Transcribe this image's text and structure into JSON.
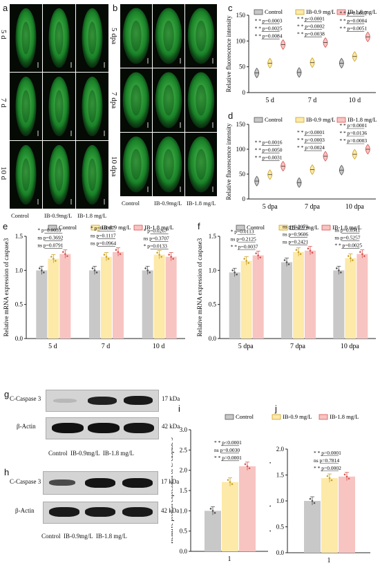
{
  "panels": {
    "a": {
      "letter": "a",
      "rows": [
        "5 d",
        "7 d",
        "10 d"
      ],
      "cols": [
        "Control",
        "IB-0.9mg/L",
        "IB-1.8 mg/L"
      ]
    },
    "b": {
      "letter": "b",
      "rows": [
        "5 dpa",
        "7 dpa",
        "10 dpa"
      ],
      "cols": [
        "Control",
        "IB-0.9mg/L",
        "IB-1.8 mg/L"
      ]
    },
    "g": {
      "letter": "g",
      "bands": [
        {
          "name": "C-Caspase 3",
          "kda": "17 kDa"
        },
        {
          "name": "β-Actin",
          "kda": "42 kDa"
        }
      ],
      "cols": "Control  IB-0.9mg/L  IB-1.8 mg/L"
    },
    "h": {
      "letter": "h",
      "bands": [
        {
          "name": "C-Caspase 3",
          "kda": "17 kDa"
        },
        {
          "name": "β-Actin",
          "kda": "42 kDa"
        }
      ],
      "cols": "Control  IB-0.9mg/L  IB-1.8 mg/L"
    }
  },
  "colors": {
    "control": "#c8c8c8",
    "ib09": "#fde9a8",
    "ib18": "#f7c4c2",
    "control_edge": "#555555",
    "ib09_edge": "#c9a227",
    "ib18_edge": "#d9534f",
    "micro_green": "#2ecc40"
  },
  "chart_data": [
    {
      "id": "c",
      "letter": "c",
      "type": "violin",
      "ylabel": "Relative fluorescence intensity",
      "ylim": [
        0,
        150
      ],
      "yticks": [
        0,
        50,
        100,
        150
      ],
      "categories": [
        "5 d",
        "7 d",
        "10 d"
      ],
      "legend": [
        "Control",
        "IB-0.9 mg/L",
        "IB-1.8 mg/L"
      ],
      "series": [
        {
          "name": "Control",
          "values": [
            38,
            39,
            57
          ]
        },
        {
          "name": "IB-0.9 mg/L",
          "values": [
            57,
            58,
            70
          ]
        },
        {
          "name": "IB-1.8 mg/L",
          "values": [
            93,
            97,
            108
          ]
        }
      ],
      "annotations": [
        {
          "group": 0,
          "text": "* *  p=0.0003"
        },
        {
          "group": 0,
          "text": "* *  p=0.0025"
        },
        {
          "group": 0,
          "text": "* *  p=0.0084"
        },
        {
          "group": 1,
          "text": "* *  p<0.0001"
        },
        {
          "group": 1,
          "text": "* *  p=0.0002"
        },
        {
          "group": 1,
          "text": "* *  p=0.0038"
        },
        {
          "group": 2,
          "text": "* *  p=0.0002"
        },
        {
          "group": 2,
          "text": "* *  p=0.0004"
        },
        {
          "group": 2,
          "text": "* *  p=0.0051"
        }
      ]
    },
    {
      "id": "d",
      "letter": "d",
      "type": "violin",
      "ylabel": "Relative fluorescence intensity",
      "ylim": [
        0,
        150
      ],
      "yticks": [
        0,
        50,
        100,
        150
      ],
      "categories": [
        "5 dpa",
        "7 dpa",
        "10 dpa"
      ],
      "legend": [
        "Control",
        "IB-0.9 mg/L",
        "IB-1.8 mg/L"
      ],
      "series": [
        {
          "name": "Control",
          "values": [
            36,
            33,
            58
          ]
        },
        {
          "name": "IB-0.9 mg/L",
          "values": [
            49,
            59,
            90
          ]
        },
        {
          "name": "IB-1.8 mg/L",
          "values": [
            66,
            86,
            100
          ]
        }
      ],
      "annotations": [
        {
          "group": 0,
          "text": "* *  p=0.0016"
        },
        {
          "group": 0,
          "text": "* *  p=0.0050"
        },
        {
          "group": 0,
          "text": "* *  p=0.0031"
        },
        {
          "group": 1,
          "text": "* *  p<0.0001"
        },
        {
          "group": 1,
          "text": "* *  p=0.0003"
        },
        {
          "group": 1,
          "text": "* *  p=0.0024"
        },
        {
          "group": 2,
          "text": "* *  p=0.0001"
        },
        {
          "group": 2,
          "text": "* *  p=0.0136"
        },
        {
          "group": 2,
          "text": "* *  p=0.0003"
        }
      ]
    },
    {
      "id": "e",
      "letter": "e",
      "type": "bar",
      "ylabel": "Relative mRNA expression of caspase3",
      "ylim": [
        0,
        1.5
      ],
      "yticks": [
        0.0,
        0.5,
        1.0,
        1.5
      ],
      "categories": [
        "5 d",
        "7 d",
        "10 d"
      ],
      "legend": [
        "Control",
        "IB-0.9 mg/L",
        "IB-1.8 mg/L"
      ],
      "series": [
        {
          "name": "Control",
          "values": [
            1.0,
            1.0,
            1.0
          ]
        },
        {
          "name": "IB-0.9 mg/L",
          "values": [
            1.17,
            1.2,
            1.23
          ]
        },
        {
          "name": "IB-1.8 mg/L",
          "values": [
            1.24,
            1.27,
            1.2
          ]
        }
      ],
      "annotations": [
        {
          "group": 0,
          "text": "*  p=0.0039"
        },
        {
          "group": 0,
          "text": "ns  p=0.3692"
        },
        {
          "group": 0,
          "text": "ns  p=0.0791"
        },
        {
          "group": 1,
          "text": "*  p=0.0387"
        },
        {
          "group": 1,
          "text": "ns  p=0.1117"
        },
        {
          "group": 1,
          "text": "ns  p=0.0964"
        },
        {
          "group": 2,
          "text": "*  p=0.0267"
        },
        {
          "group": 2,
          "text": "ns  p=0.3707"
        },
        {
          "group": 2,
          "text": "*  p=0.0133"
        }
      ]
    },
    {
      "id": "f",
      "letter": "f",
      "type": "bar",
      "ylabel": "Relative mRNA expression of caspase3",
      "ylim": [
        0,
        1.5
      ],
      "yticks": [
        0.0,
        0.5,
        1.0,
        1.5
      ],
      "categories": [
        "5 dpa",
        "7 dpa",
        "10 dpa"
      ],
      "legend": [
        "Control",
        "IB-0.9 mg/L",
        "IB-1.8 mg/L"
      ],
      "series": [
        {
          "name": "Control",
          "values": [
            0.97,
            1.12,
            1.0
          ]
        },
        {
          "name": "IB-0.9 mg/L",
          "values": [
            1.14,
            1.27,
            1.18
          ]
        },
        {
          "name": "IB-1.8 mg/L",
          "values": [
            1.22,
            1.29,
            1.24
          ]
        }
      ],
      "annotations": [
        {
          "group": 0,
          "text": "*  p=0.0113"
        },
        {
          "group": 0,
          "text": "ns  p=0.2125"
        },
        {
          "group": 0,
          "text": "* *  p=0.0037"
        },
        {
          "group": 1,
          "text": "ns  p=0.2070"
        },
        {
          "group": 1,
          "text": "ns  p=0.9606"
        },
        {
          "group": 1,
          "text": "ns  p=0.2421"
        },
        {
          "group": 2,
          "text": "ns  p=0.0511"
        },
        {
          "group": 2,
          "text": "ns  p=0.5257"
        },
        {
          "group": 2,
          "text": "* *  p=0.0025"
        }
      ]
    },
    {
      "id": "i",
      "letter": "i",
      "type": "bar",
      "ylabel": "Relative protein expression of C-caspase 3",
      "ylim": [
        0,
        3.0
      ],
      "yticks": [
        0.0,
        0.5,
        1.0,
        1.5,
        2.0,
        2.5,
        3.0
      ],
      "categories": [
        "1"
      ],
      "legend": [
        "Control",
        "IB-0.9 mg/L",
        "IB-1.8 mg/L"
      ],
      "series": [
        {
          "name": "Control",
          "values": [
            1.0
          ]
        },
        {
          "name": "IB-0.9 mg/L",
          "values": [
            1.71
          ]
        },
        {
          "name": "IB-1.8 mg/L",
          "values": [
            2.1
          ]
        }
      ],
      "annotations": [
        {
          "group": 0,
          "text": "* *  p<0.0001"
        },
        {
          "group": 0,
          "text": "ns  p=0.0030"
        },
        {
          "group": 0,
          "text": "* *  p=0.0001"
        }
      ]
    },
    {
      "id": "j",
      "letter": "j",
      "type": "bar",
      "ylabel": "Relative protein expression of C-caspase 3",
      "ylim": [
        0,
        2.0
      ],
      "yticks": [
        0.0,
        0.5,
        1.0,
        1.5,
        2.0
      ],
      "categories": [
        "1"
      ],
      "legend": [],
      "series": [
        {
          "name": "Control",
          "values": [
            1.0
          ]
        },
        {
          "name": "IB-0.9 mg/L",
          "values": [
            1.44
          ]
        },
        {
          "name": "IB-1.8 mg/L",
          "values": [
            1.47
          ]
        }
      ],
      "annotations": [
        {
          "group": 0,
          "text": "* *  p=0.0001"
        },
        {
          "group": 0,
          "text": "ns  p=0.7814"
        },
        {
          "group": 0,
          "text": "* *  p=0.0002"
        }
      ]
    }
  ]
}
